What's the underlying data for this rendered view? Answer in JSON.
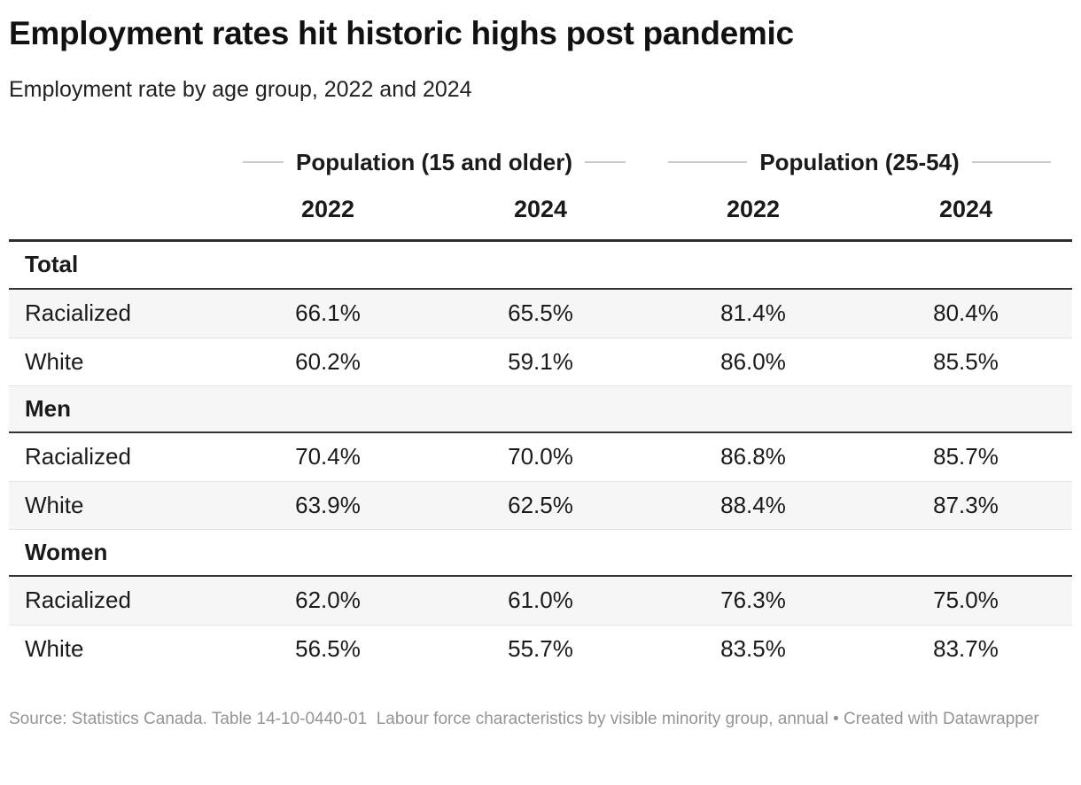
{
  "header": {
    "title": "Employment rates hit historic highs post pandemic",
    "subtitle": "Employment rate by age group, 2022 and 2024"
  },
  "table": {
    "column_groups": [
      {
        "label": "Population (15 and older)"
      },
      {
        "label": "Population (25-54)"
      }
    ],
    "year_headers": [
      "2022",
      "2024",
      "2022",
      "2024"
    ],
    "sections": [
      {
        "label": "Total",
        "rows": [
          {
            "label": "Racialized",
            "values": [
              "66.1%",
              "65.5%",
              "81.4%",
              "80.4%"
            ]
          },
          {
            "label": "White",
            "values": [
              "60.2%",
              "59.1%",
              "86.0%",
              "85.5%"
            ]
          }
        ]
      },
      {
        "label": "Men",
        "rows": [
          {
            "label": "Racialized",
            "values": [
              "70.4%",
              "70.0%",
              "86.8%",
              "85.7%"
            ]
          },
          {
            "label": "White",
            "values": [
              "63.9%",
              "62.5%",
              "88.4%",
              "87.3%"
            ]
          }
        ]
      },
      {
        "label": "Women",
        "rows": [
          {
            "label": "Racialized",
            "values": [
              "62.0%",
              "61.0%",
              "76.3%",
              "75.0%"
            ]
          },
          {
            "label": "White",
            "values": [
              "56.5%",
              "55.7%",
              "83.5%",
              "83.7%"
            ]
          }
        ]
      }
    ]
  },
  "footer": {
    "source": "Source: Statistics Canada. Table 14-10-0440-01  Labour force characteristics by visible minority group, annual",
    "separator": "•",
    "credit": "Created with Datawrapper"
  },
  "colors": {
    "title_text": "#111111",
    "body_text": "#1a1a1a",
    "zebra_row": "#f6f6f6",
    "header_border": "#2e2e2e",
    "section_border": "#333333",
    "row_border": "#e4e4e4",
    "group_line": "#c9c9c9",
    "footer_text": "#949494",
    "background": "#ffffff"
  },
  "chart_data": {
    "type": "table",
    "title": "Employment rates hit historic highs post pandemic",
    "subtitle": "Employment rate by age group, 2022 and 2024",
    "unit": "%",
    "column_groups": [
      {
        "label": "Population (15 and older)",
        "columns": [
          "2022",
          "2024"
        ]
      },
      {
        "label": "Population (25-54)",
        "columns": [
          "2022",
          "2024"
        ]
      }
    ],
    "sections": [
      {
        "name": "Total",
        "rows": [
          {
            "label": "Racialized",
            "values": [
              66.1,
              65.5,
              81.4,
              80.4
            ]
          },
          {
            "label": "White",
            "values": [
              60.2,
              59.1,
              86.0,
              85.5
            ]
          }
        ]
      },
      {
        "name": "Men",
        "rows": [
          {
            "label": "Racialized",
            "values": [
              70.4,
              70.0,
              86.8,
              85.7
            ]
          },
          {
            "label": "White",
            "values": [
              63.9,
              62.5,
              88.4,
              87.3
            ]
          }
        ]
      },
      {
        "name": "Women",
        "rows": [
          {
            "label": "Racialized",
            "values": [
              62.0,
              61.0,
              76.3,
              75.0
            ]
          },
          {
            "label": "White",
            "values": [
              56.5,
              55.7,
              83.5,
              83.7
            ]
          }
        ]
      }
    ],
    "source": "Statistics Canada. Table 14-10-0440-01 Labour force characteristics by visible minority group, annual",
    "credit": "Created with Datawrapper"
  }
}
